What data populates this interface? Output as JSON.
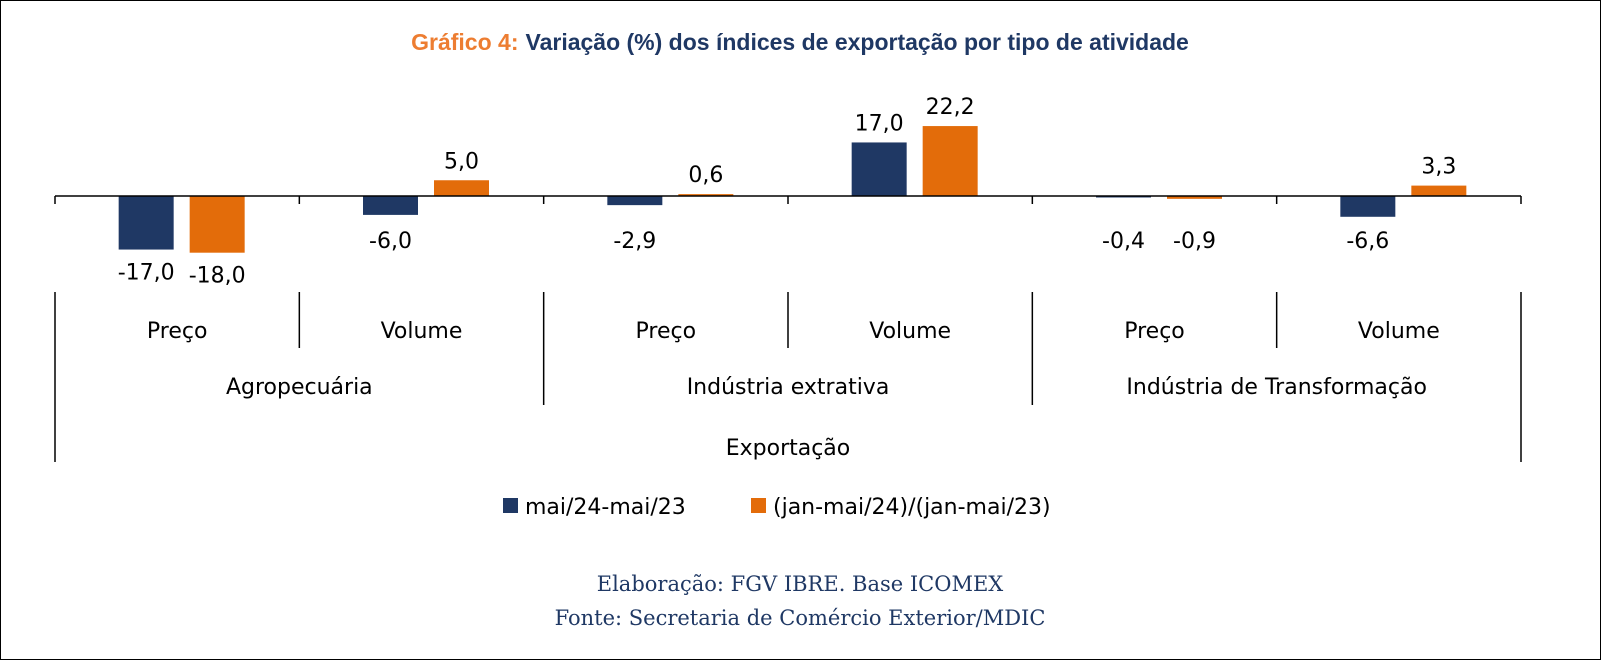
{
  "chart_data": {
    "type": "bar",
    "title_prefix": "Gráfico 4:",
    "title": "Variação (%) dos índices de exportação por tipo de atividade",
    "group_label": "Exportação",
    "sectors": [
      "Agropecuária",
      "Indústria extrativa",
      "Indústria de Transformação"
    ],
    "categories": [
      "Preço",
      "Volume",
      "Preço",
      "Volume",
      "Preço",
      "Volume"
    ],
    "series": [
      {
        "name": "mai/24-mai/23",
        "color": "#1F3864",
        "values": [
          -17.0,
          -6.0,
          -2.9,
          17.0,
          -0.4,
          -6.6
        ],
        "labels": [
          "-17,0",
          "-6,0",
          "-2,9",
          "17,0",
          "-0,4",
          "-6,6"
        ]
      },
      {
        "name": "(jan-mai/24)/(jan-mai/23)",
        "color": "#E36C0A",
        "values": [
          -18.0,
          5.0,
          0.6,
          22.2,
          -0.9,
          3.3
        ],
        "labels": [
          "-18,0",
          "5,0",
          "0,6",
          "22,2",
          "-0,9",
          "3,3"
        ]
      }
    ],
    "legend_position": "bottom",
    "grid": false
  },
  "footer": {
    "line1": "Elaboração: FGV IBRE. Base ICOMEX",
    "line2": "Fonte: Secretaria de Comércio Exterior/MDIC"
  }
}
